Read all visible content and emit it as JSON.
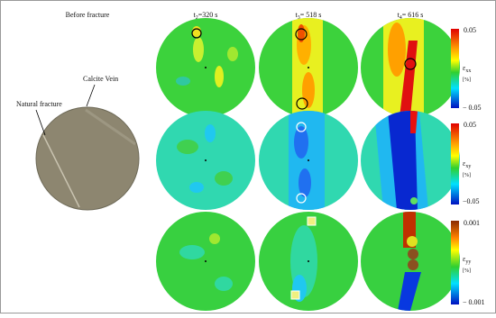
{
  "header": {
    "before": "Before fracture",
    "times": [
      {
        "t": "t",
        "sub": "2",
        "rest": "=320 s"
      },
      {
        "t": "t",
        "sub": "3",
        "rest": "= 518 s"
      },
      {
        "t": "t",
        "sub": "4",
        "rest": "= 616 s"
      }
    ]
  },
  "labels": {
    "calcite": "Calcite Vein",
    "natural": "Natural fracture"
  },
  "colorbars": [
    {
      "max": "0.05",
      "min": "− 0.05",
      "symbol": "ε",
      "sub": "xx",
      "unit": "[%]"
    },
    {
      "max": "0.05",
      "min": "−0.05",
      "symbol": "ε",
      "sub": "xy",
      "unit": "[%]"
    },
    {
      "max": "0.001",
      "min": "− 0.001",
      "symbol": "ε",
      "sub": "yy",
      "unit": "[%]"
    }
  ]
}
